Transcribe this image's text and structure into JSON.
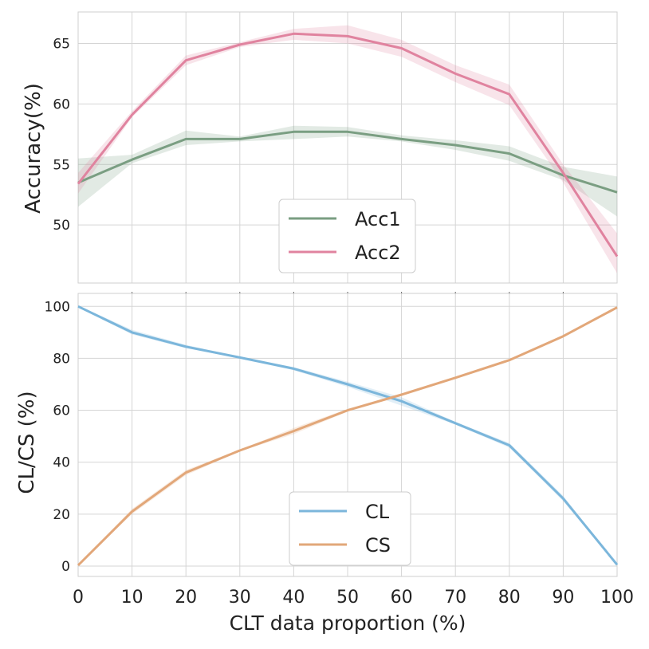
{
  "chart_data": [
    {
      "type": "line",
      "ylabel": "Accuracy(%)",
      "xlabel": "",
      "x": [
        0,
        10,
        20,
        30,
        40,
        50,
        60,
        70,
        80,
        90,
        100
      ],
      "xlim": [
        0,
        100
      ],
      "ylim": [
        45.2,
        67.6
      ],
      "yticks": [
        50,
        55,
        60,
        65
      ],
      "ytick_labels": [
        "50",
        "55",
        "60",
        "65"
      ],
      "grid": true,
      "legend": "center-bottom",
      "series": [
        {
          "name": "Acc1",
          "color": "#7a9e82",
          "values": [
            53.5,
            55.4,
            57.1,
            57.1,
            57.7,
            57.7,
            57.1,
            56.6,
            55.9,
            54.1,
            52.7
          ],
          "lower": [
            51.5,
            55.1,
            56.6,
            56.9,
            57.1,
            57.3,
            56.9,
            56.2,
            55.3,
            53.7,
            50.7
          ],
          "upper": [
            55.5,
            55.8,
            57.8,
            57.3,
            58.2,
            58.1,
            57.4,
            57.0,
            56.5,
            54.8,
            54.0
          ]
        },
        {
          "name": "Acc2",
          "color": "#e0839f",
          "values": [
            53.4,
            59.1,
            63.6,
            64.9,
            65.8,
            65.6,
            64.6,
            62.5,
            60.8,
            54.3,
            47.4
          ],
          "lower": [
            52.6,
            58.9,
            63.2,
            64.7,
            65.3,
            65.0,
            63.9,
            61.8,
            59.9,
            53.5,
            46.0
          ],
          "upper": [
            54.3,
            59.4,
            64.0,
            65.1,
            66.2,
            66.5,
            65.3,
            63.2,
            61.6,
            55.0,
            49.3
          ]
        }
      ]
    },
    {
      "type": "line",
      "ylabel": "CL/CS (%)",
      "xlabel": "CLT data proportion (%)",
      "x": [
        0,
        10,
        20,
        30,
        40,
        50,
        60,
        70,
        80,
        90,
        100
      ],
      "xlim": [
        0,
        100
      ],
      "ylim": [
        -4,
        105
      ],
      "yticks": [
        0,
        20,
        40,
        60,
        80,
        100
      ],
      "ytick_labels": [
        "0",
        "20",
        "40",
        "60",
        "80",
        "100"
      ],
      "xticks": [
        0,
        10,
        20,
        30,
        40,
        50,
        60,
        70,
        80,
        90,
        100
      ],
      "xtick_labels": [
        "0",
        "10",
        "20",
        "30",
        "40",
        "50",
        "60",
        "70",
        "80",
        "90",
        "100"
      ],
      "grid": true,
      "legend": "center-bottom",
      "series": [
        {
          "name": "CL",
          "color": "#7bb6db",
          "values": [
            100,
            90,
            84.5,
            80.3,
            76,
            70,
            63.5,
            55,
            46.5,
            26,
            0.5
          ],
          "lower": [
            99.6,
            89.2,
            83.9,
            80.0,
            75.4,
            69.0,
            61.8,
            54.5,
            45.6,
            25.0,
            0.4
          ],
          "upper": [
            100.3,
            91.0,
            85.2,
            80.6,
            76.6,
            71.0,
            65.0,
            55.5,
            47.4,
            27.0,
            0.7
          ]
        },
        {
          "name": "CS",
          "color": "#e2a779",
          "values": [
            0.3,
            21,
            36,
            44.5,
            52,
            60,
            66,
            72.5,
            79.3,
            88.5,
            99.6
          ],
          "lower": [
            0.1,
            20.0,
            35.0,
            44.2,
            50.8,
            59.5,
            65.5,
            72.2,
            79.0,
            88.0,
            99.4
          ],
          "upper": [
            0.5,
            22.0,
            37.0,
            44.8,
            53.2,
            60.5,
            66.5,
            72.8,
            79.6,
            89.0,
            99.8
          ]
        }
      ]
    }
  ]
}
